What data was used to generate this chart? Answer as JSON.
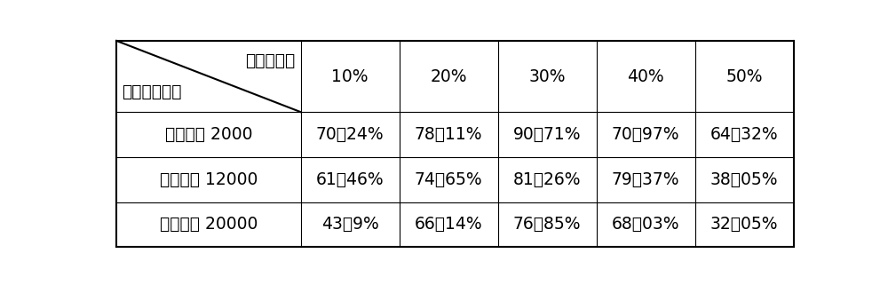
{
  "header_top_label": "保护剂浓度",
  "header_bottom_label": "保护剂分子量",
  "col_headers": [
    "10%",
    "20%",
    "30%",
    "40%",
    "50%"
  ],
  "rows": [
    [
      "聚乙二醇 2000",
      "70．24%",
      "78．11%",
      "90．71%",
      "70．97%",
      "64．32%"
    ],
    [
      "聚乙二醇 12000",
      "61．46%",
      "74．65%",
      "81．26%",
      "79．37%",
      "38．05%"
    ],
    [
      "聚乙二醇 20000",
      "43．9%",
      "66．14%",
      "76．85%",
      "68．03%",
      "32．05%"
    ]
  ],
  "bg_color": "#ffffff",
  "border_color": "#000000",
  "font_size": 13.5,
  "header_font_size": 13.5
}
